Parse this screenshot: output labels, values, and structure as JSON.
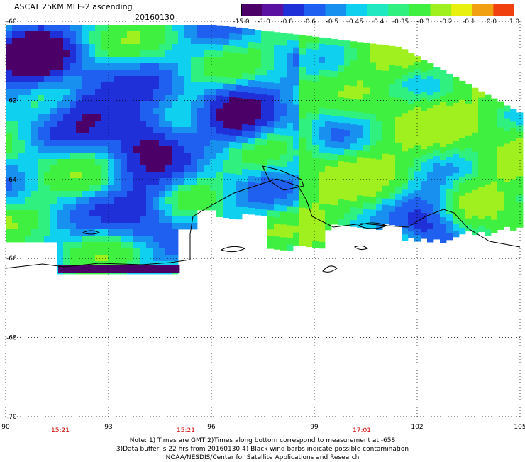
{
  "header": {
    "title": "ASCAT 25KM MLE-2 ascending",
    "date": "20160130"
  },
  "colorbar": {
    "labels": [
      "-15.0",
      "-1.0",
      "-0.8",
      "-0.6",
      "-0.5",
      "-0.45",
      "-0.4",
      "-0.35",
      "-0.3",
      "-0.2",
      "-0.1",
      "0.0",
      "1.0"
    ],
    "colors": [
      "#4a0066",
      "#5a10a0",
      "#2030d8",
      "#2060f0",
      "#1890f0",
      "#10d0f0",
      "#20e8c0",
      "#30f080",
      "#40f040",
      "#a0f020",
      "#e8f010",
      "#f0a010",
      "#f04010"
    ]
  },
  "map": {
    "lat_labels": [
      "-60",
      "-62",
      "-64",
      "-66",
      "-68",
      "-70"
    ],
    "lon_labels": [
      "90",
      "93",
      "96",
      "99",
      "102",
      "105"
    ],
    "time_labels": [
      "15:21",
      "15:21",
      "17:01"
    ]
  },
  "notes": {
    "line1": "Note: 1) Times are GMT 2)Times along bottom correspond to measurement at -65S",
    "line2": "3)Data buffer is 22 hrs from 20160130 4) Black wind barbs indicate possible contamination",
    "line3": "NOAA/NESDIS/Center for Satellite Applications and Research"
  }
}
